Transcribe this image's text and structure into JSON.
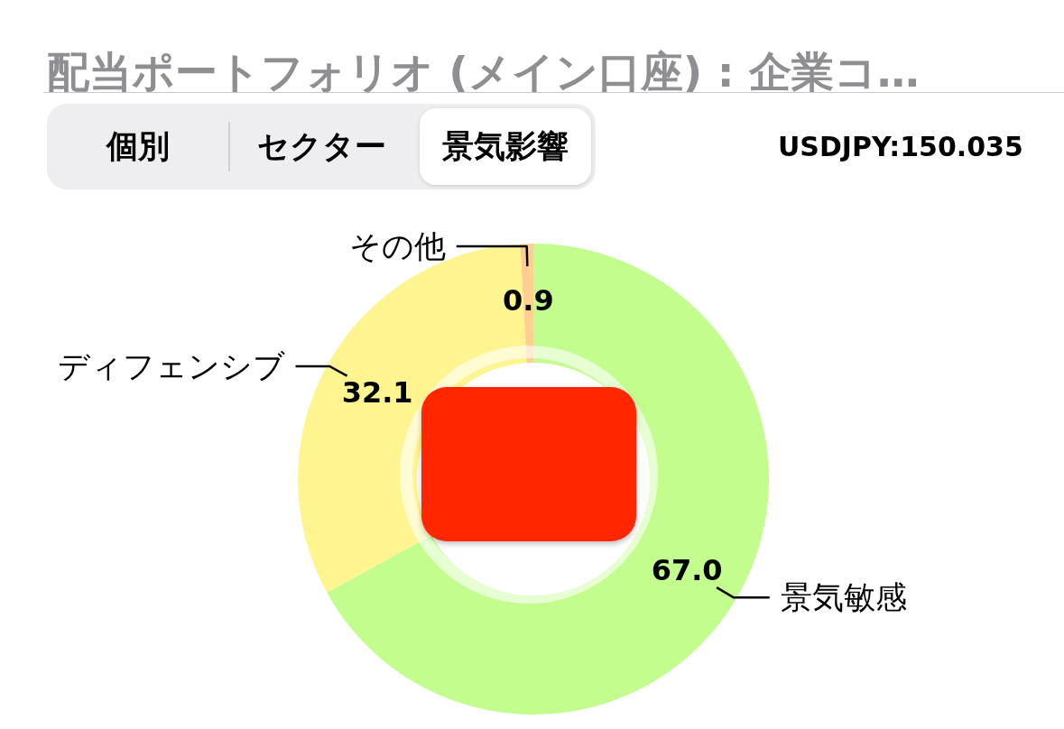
{
  "chart_data": {
    "type": "donut",
    "title": "配当ポートフォリオ (メイン口座) : 企業コ…",
    "categories": [
      "景気敏感",
      "ディフェンシブ",
      "その他"
    ],
    "values": [
      67.0,
      32.1,
      0.9
    ],
    "colors": [
      "#c3fd8e",
      "#fff590",
      "#fecf90"
    ],
    "value_labels": [
      "67.0",
      "32.1",
      "0.9"
    ],
    "annotations": [
      "個別",
      "セクター",
      "景気影響",
      "USDJPY:150.035"
    ]
  }
}
